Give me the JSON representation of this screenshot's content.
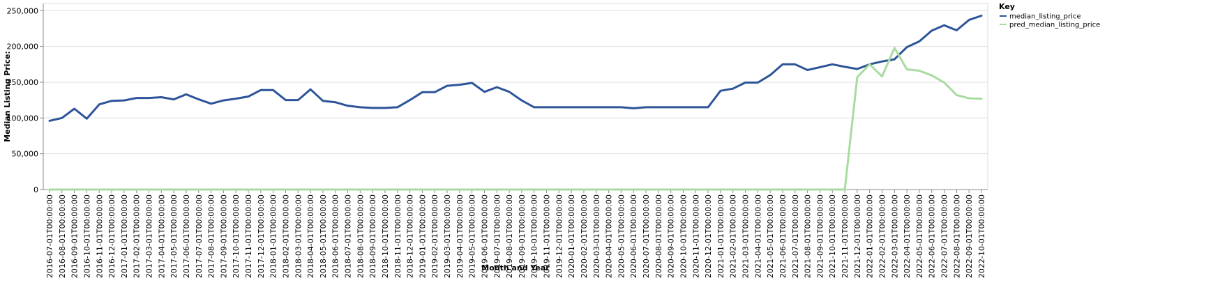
{
  "chart_data": {
    "type": "line",
    "xlabel": "Month and Year",
    "ylabel": "Median Listing Price:",
    "ylim": [
      0,
      260000
    ],
    "yticks": [
      0,
      50000,
      100000,
      150000,
      200000,
      250000
    ],
    "ytick_labels": [
      "0",
      "50,000",
      "100,000",
      "150,000",
      "200,000",
      "250,000"
    ],
    "grid": true,
    "legend": {
      "title": "Key",
      "placement": "top-right"
    },
    "x": [
      "2016-07-01T00:00:00",
      "2016-08-01T00:00:00",
      "2016-09-01T00:00:00",
      "2016-10-01T00:00:00",
      "2016-11-01T00:00:00",
      "2016-12-01T00:00:00",
      "2017-01-01T00:00:00",
      "2017-02-01T00:00:00",
      "2017-03-01T00:00:00",
      "2017-04-01T00:00:00",
      "2017-05-01T00:00:00",
      "2017-06-01T00:00:00",
      "2017-07-01T00:00:00",
      "2017-08-01T00:00:00",
      "2017-09-01T00:00:00",
      "2017-10-01T00:00:00",
      "2017-11-01T00:00:00",
      "2017-12-01T00:00:00",
      "2018-01-01T00:00:00",
      "2018-02-01T00:00:00",
      "2018-03-01T00:00:00",
      "2018-04-01T00:00:00",
      "2018-05-01T00:00:00",
      "2018-06-01T00:00:00",
      "2018-07-01T00:00:00",
      "2018-08-01T00:00:00",
      "2018-09-01T00:00:00",
      "2018-10-01T00:00:00",
      "2018-11-01T00:00:00",
      "2018-12-01T00:00:00",
      "2019-01-01T00:00:00",
      "2019-02-01T00:00:00",
      "2019-03-01T00:00:00",
      "2019-04-01T00:00:00",
      "2019-05-01T00:00:00",
      "2019-06-01T00:00:00",
      "2019-07-01T00:00:00",
      "2019-08-01T00:00:00",
      "2019-09-01T00:00:00",
      "2019-10-01T00:00:00",
      "2019-11-01T00:00:00",
      "2019-12-01T00:00:00",
      "2020-01-01T00:00:00",
      "2020-02-01T00:00:00",
      "2020-03-01T00:00:00",
      "2020-04-01T00:00:00",
      "2020-05-01T00:00:00",
      "2020-06-01T00:00:00",
      "2020-07-01T00:00:00",
      "2020-08-01T00:00:00",
      "2020-09-01T00:00:00",
      "2020-10-01T00:00:00",
      "2020-11-01T00:00:00",
      "2020-12-01T00:00:00",
      "2021-01-01T00:00:00",
      "2021-02-01T00:00:00",
      "2021-03-01T00:00:00",
      "2021-04-01T00:00:00",
      "2021-05-01T00:00:00",
      "2021-06-01T00:00:00",
      "2021-07-01T00:00:00",
      "2021-08-01T00:00:00",
      "2021-09-01T00:00:00",
      "2021-10-01T00:00:00",
      "2021-11-01T00:00:00",
      "2021-12-01T00:00:00",
      "2022-01-01T00:00:00",
      "2022-02-01T00:00:00",
      "2022-03-01T00:00:00",
      "2022-04-01T00:00:00",
      "2022-05-01T00:00:00",
      "2022-06-01T00:00:00",
      "2022-07-01T00:00:00",
      "2022-08-01T00:00:00",
      "2022-09-01T00:00:00",
      "2022-10-01T00:00:00"
    ],
    "series": [
      {
        "name": "median_listing_price",
        "color": "#2d5499",
        "values": [
          96000,
          100000,
          113000,
          99000,
          119000,
          124000,
          124500,
          128000,
          128000,
          129000,
          126000,
          133000,
          126000,
          120000,
          124500,
          127000,
          130000,
          139000,
          139000,
          125000,
          125000,
          140000,
          124000,
          122000,
          117000,
          115000,
          114000,
          114000,
          115000,
          125000,
          136000,
          136000,
          145000,
          146500,
          149000,
          136500,
          143000,
          136500,
          124500,
          115000,
          115000,
          115000,
          115000,
          115000,
          115000,
          115000,
          115000,
          113500,
          115000,
          115000,
          115000,
          115000,
          115000,
          115000,
          138000,
          141000,
          149500,
          149500,
          160000,
          175000,
          175000,
          167000,
          171000,
          175000,
          171500,
          168500,
          175000,
          179000,
          182000,
          199000,
          207000,
          222000,
          229500,
          222500,
          237000,
          243000
        ]
      },
      {
        "name": "pred_median_listing_price",
        "color": "#a8dba0",
        "values": [
          0,
          0,
          0,
          0,
          0,
          0,
          0,
          0,
          0,
          0,
          0,
          0,
          0,
          0,
          0,
          0,
          0,
          0,
          0,
          0,
          0,
          0,
          0,
          0,
          0,
          0,
          0,
          0,
          0,
          0,
          0,
          0,
          0,
          0,
          0,
          0,
          0,
          0,
          0,
          0,
          0,
          0,
          0,
          0,
          0,
          0,
          0,
          0,
          0,
          0,
          0,
          0,
          0,
          0,
          0,
          0,
          0,
          0,
          0,
          0,
          0,
          0,
          0,
          0,
          0,
          157000,
          175000,
          158000,
          198000,
          168000,
          166000,
          159500,
          149500,
          132000,
          127500,
          127000
        ]
      }
    ]
  }
}
